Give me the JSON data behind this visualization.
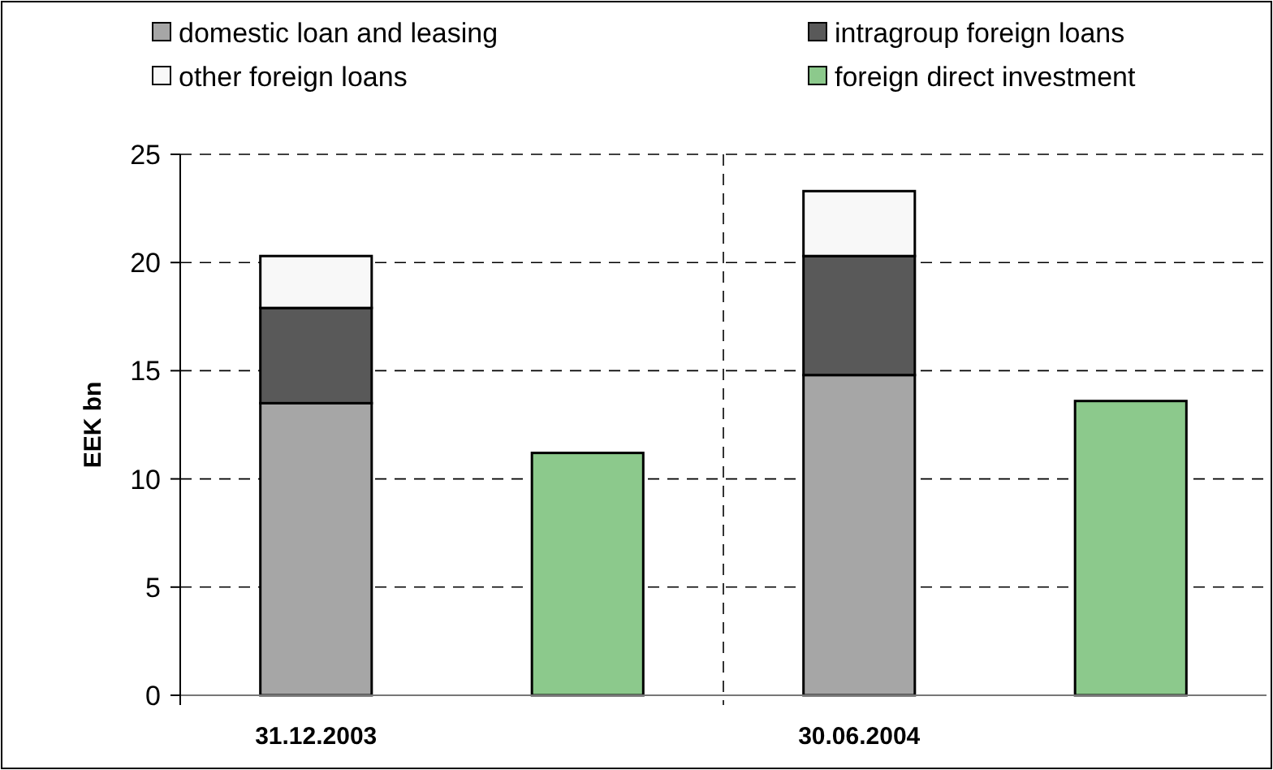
{
  "chart_data": {
    "type": "bar",
    "stacked": true,
    "ylabel": "EEK bn",
    "categories": [
      "31.12.2003",
      null,
      "30.06.2004",
      null
    ],
    "series": [
      {
        "name": "domestic loan and leasing",
        "color": "#a6a6a6",
        "values": [
          13.5,
          null,
          14.8,
          null
        ]
      },
      {
        "name": "intragroup foreign loans",
        "color": "#595959",
        "values": [
          4.4,
          null,
          5.5,
          null
        ]
      },
      {
        "name": "other foreign loans",
        "color": "#f8f8f8",
        "values": [
          2.4,
          null,
          3.0,
          null
        ]
      },
      {
        "name": "foreign direct investment",
        "color": "#8cc98c",
        "values": [
          null,
          11.2,
          null,
          13.6
        ]
      }
    ],
    "ylim": [
      0,
      25
    ],
    "yticks": [
      0,
      5,
      10,
      15,
      20,
      25
    ],
    "grid": true,
    "legend": "top"
  }
}
